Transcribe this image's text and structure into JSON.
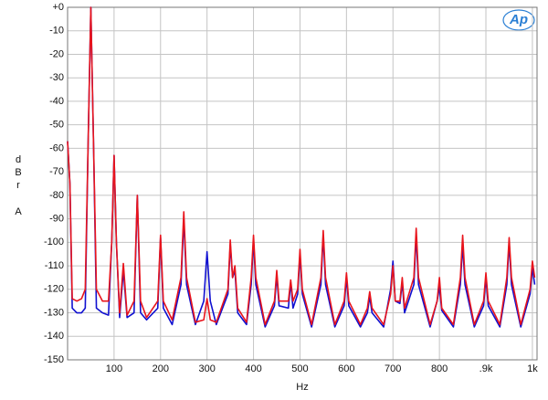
{
  "chart_data": {
    "type": "line",
    "xlabel": "Hz",
    "ylabel": "dBr A",
    "logo": "Ap",
    "x": [
      0,
      5,
      10,
      20,
      30,
      38,
      44,
      50,
      56,
      62,
      75,
      88,
      95,
      100,
      105,
      112,
      120,
      128,
      143,
      150,
      157,
      170,
      194,
      200,
      206,
      225,
      244,
      250,
      256,
      275,
      293,
      300,
      307,
      320,
      345,
      350,
      355,
      360,
      366,
      385,
      395,
      400,
      405,
      425,
      445,
      450,
      455,
      475,
      480,
      485,
      495,
      500,
      505,
      525,
      545,
      550,
      555,
      575,
      595,
      600,
      605,
      630,
      645,
      650,
      655,
      680,
      695,
      700,
      705,
      715,
      720,
      725,
      745,
      750,
      755,
      780,
      795,
      800,
      805,
      830,
      845,
      850,
      855,
      875,
      895,
      900,
      905,
      930,
      945,
      950,
      955,
      975,
      995,
      1000,
      1005
    ],
    "series": [
      {
        "color": "#1010d0",
        "values": [
          -57,
          -75,
          -128,
          -130,
          -130,
          -128,
          -60,
          0,
          -60,
          -128,
          -130,
          -131,
          -100,
          -63,
          -100,
          -132,
          -112,
          -132,
          -130,
          -80,
          -130,
          -133,
          -128,
          -98,
          -128,
          -135,
          -118,
          -90,
          -118,
          -135,
          -125,
          -104,
          -125,
          -135,
          -122,
          -101,
          -115,
          -112,
          -130,
          -135,
          -118,
          -99,
          -118,
          -136,
          -127,
          -114,
          -127,
          -128,
          -117,
          -128,
          -122,
          -105,
          -122,
          -136,
          -118,
          -97,
          -118,
          -136,
          -127,
          -115,
          -127,
          -136,
          -130,
          -123,
          -130,
          -136,
          -120,
          -108,
          -125,
          -126,
          -117,
          -130,
          -118,
          -97,
          -118,
          -136,
          -125,
          -119,
          -129,
          -136,
          -118,
          -101,
          -118,
          -136,
          -127,
          -115,
          -127,
          -136,
          -118,
          -100,
          -118,
          -136,
          -122,
          -111,
          -118
        ]
      },
      {
        "color": "#e8141c",
        "values": [
          -57,
          -75,
          -124,
          -125,
          -124,
          -120,
          -60,
          0,
          -60,
          -120,
          -125,
          -125,
          -100,
          -63,
          -100,
          -130,
          -109,
          -131,
          -125,
          -80,
          -125,
          -132,
          -125,
          -97,
          -125,
          -133,
          -115,
          -87,
          -115,
          -134,
          -133,
          -124,
          -133,
          -134,
          -120,
          -99,
          -115,
          -110,
          -128,
          -134,
          -115,
          -97,
          -115,
          -135,
          -125,
          -112,
          -125,
          -125,
          -116,
          -125,
          -120,
          -103,
          -120,
          -135,
          -115,
          -95,
          -115,
          -135,
          -125,
          -113,
          -125,
          -135,
          -128,
          -121,
          -128,
          -135,
          -122,
          -110,
          -125,
          -125,
          -115,
          -128,
          -115,
          -94,
          -115,
          -135,
          -125,
          -115,
          -128,
          -135,
          -115,
          -97,
          -115,
          -135,
          -125,
          -113,
          -125,
          -135,
          -115,
          -98,
          -115,
          -135,
          -120,
          -108,
          -115
        ]
      }
    ],
    "xlim": [
      0,
      1010
    ],
    "ylim": [
      -150,
      0
    ],
    "xticks": [
      100,
      200,
      300,
      400,
      500,
      600,
      700,
      800,
      {
        "value": 900,
        "label": ".9k"
      },
      {
        "value": 1000,
        "label": "1k"
      }
    ],
    "yticks": [
      {
        "value": 0,
        "label": "+0"
      },
      -10,
      -20,
      -30,
      -40,
      -50,
      -60,
      -70,
      -80,
      -90,
      -100,
      -110,
      -120,
      -130,
      -140,
      -150
    ],
    "grid": true
  }
}
